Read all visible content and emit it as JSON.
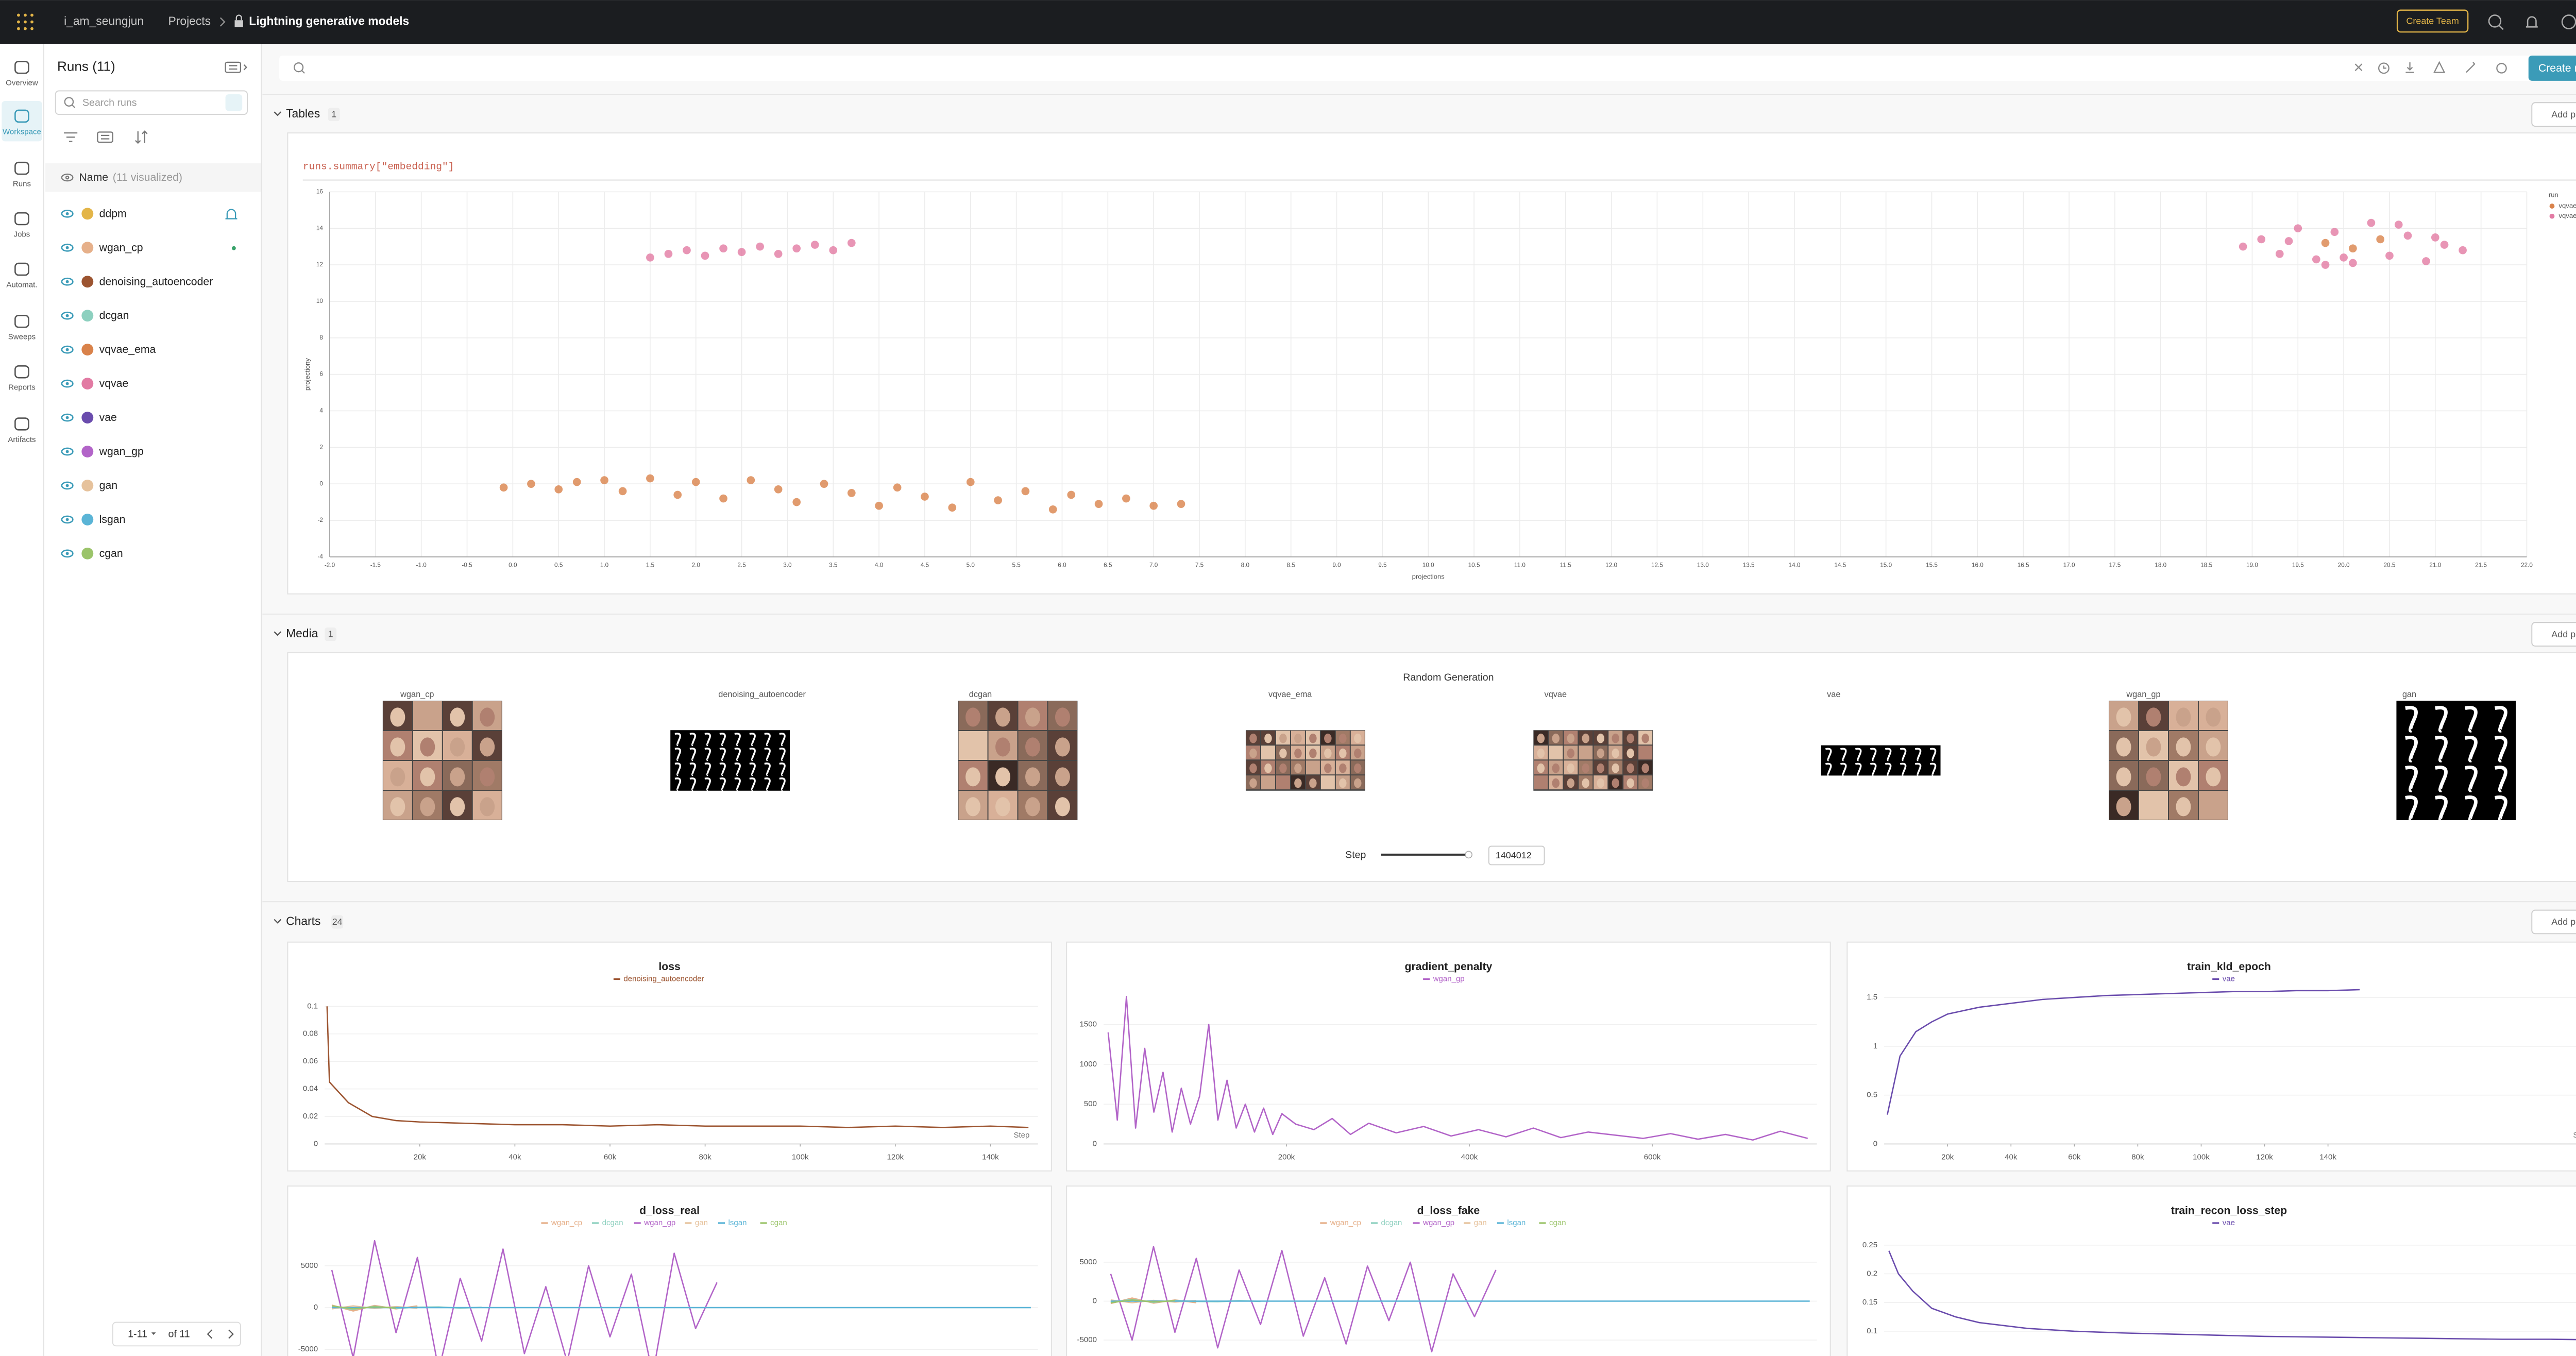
{
  "header": {
    "user": "i_am_seungjun",
    "projects": "Projects",
    "project": "Lightning generative models",
    "create_team": "Create Team"
  },
  "nav": [
    "Overview",
    "Workspace",
    "Runs",
    "Jobs",
    "Automat.",
    "Sweeps",
    "Reports",
    "Artifacts"
  ],
  "runs_panel": {
    "title": "Runs (11)",
    "search_placeholder": "Search runs",
    "name_col": "Name",
    "visualized": "(11 visualized)",
    "runs": [
      {
        "name": "ddpm",
        "color": "#e3b548"
      },
      {
        "name": "wgan_cp",
        "color": "#e6b08a"
      },
      {
        "name": "denoising_autoencoder",
        "color": "#9c5430"
      },
      {
        "name": "dcgan",
        "color": "#8dd0bf"
      },
      {
        "name": "vqvae_ema",
        "color": "#d9824a"
      },
      {
        "name": "vqvae",
        "color": "#e27aa3"
      },
      {
        "name": "vae",
        "color": "#6a4cad"
      },
      {
        "name": "wgan_gp",
        "color": "#b264c8"
      },
      {
        "name": "gan",
        "color": "#e6c29c"
      },
      {
        "name": "lsgan",
        "color": "#5ab4d6"
      },
      {
        "name": "cgan",
        "color": "#9bc46a"
      }
    ],
    "pager": "1-11",
    "pager_total": "of 11"
  },
  "create_report": "Create report",
  "add_panel": "Add panel",
  "sections": [
    {
      "title": "Tables",
      "count": 1
    },
    {
      "title": "Media",
      "count": 1
    },
    {
      "title": "Charts",
      "count": 24
    }
  ],
  "table": {
    "query": "runs.summary[\"embedding\"]"
  },
  "media": {
    "title": "Random Generation",
    "images": [
      "wgan_cp",
      "denoising_autoencoder",
      "dcgan",
      "vqvae_ema",
      "vqvae",
      "vae",
      "wgan_gp",
      "gan"
    ],
    "step_label": "Step",
    "step": 1404012
  },
  "chart_data": [
    {
      "type": "scatter",
      "xlabel": "projections",
      "ylabel": "projectiony",
      "legend_title": "run",
      "legend": "right",
      "grid": true,
      "xlim": [
        -2,
        22
      ],
      "xticks": [
        {
          "value": -2,
          "label": "-2.0"
        },
        -1.5,
        {
          "value": -1,
          "label": "-1.0"
        },
        -0.5,
        {
          "value": 0,
          "label": "0.0"
        },
        0.5,
        {
          "value": 1,
          "label": "1.0"
        },
        1.5,
        {
          "value": 2,
          "label": "2.0"
        },
        2.5,
        {
          "value": 3,
          "label": "3.0"
        },
        3.5,
        {
          "value": 4,
          "label": "4.0"
        },
        4.5,
        {
          "value": 5,
          "label": "5.0"
        },
        5.5,
        {
          "value": 6,
          "label": "6.0"
        },
        6.5,
        {
          "value": 7,
          "label": "7.0"
        },
        7.5,
        {
          "value": 8,
          "label": "8.0"
        },
        8.5,
        {
          "value": 9,
          "label": "9.0"
        },
        9.5,
        {
          "value": 10,
          "label": "10.0"
        },
        10.5,
        {
          "value": 11,
          "label": "11.0"
        },
        11.5,
        {
          "value": 12,
          "label": "12.0"
        },
        12.5,
        {
          "value": 13,
          "label": "13.0"
        },
        13.5,
        {
          "value": 14,
          "label": "14.0"
        },
        14.5,
        {
          "value": 15,
          "label": "15.0"
        },
        15.5,
        {
          "value": 16,
          "label": "16.0"
        },
        16.5,
        {
          "value": 17,
          "label": "17.0"
        },
        17.5,
        {
          "value": 18,
          "label": "18.0"
        },
        18.5,
        {
          "value": 19,
          "label": "19.0"
        },
        19.5,
        {
          "value": 20,
          "label": "20.0"
        },
        20.5,
        {
          "value": 21,
          "label": "21.0"
        },
        21.5,
        {
          "value": 22,
          "label": "22.0"
        }
      ],
      "ylim": [
        -4,
        16
      ],
      "yticks": [
        -4,
        -2,
        0,
        2,
        4,
        6,
        8,
        10,
        12,
        14,
        16
      ],
      "series": [
        {
          "name": "vqvae_ema",
          "color": "#d9824a",
          "x": [
            -0.1,
            0.2,
            0.5,
            0.7,
            1.0,
            1.2,
            1.5,
            1.8,
            2.0,
            2.3,
            2.6,
            2.9,
            3.1,
            3.4,
            3.7,
            4.0,
            4.2,
            4.5,
            4.8,
            5.0,
            5.3,
            5.6,
            5.9,
            6.1,
            6.4,
            6.7,
            7.0,
            7.3,
            19.8,
            20.1,
            20.4
          ],
          "values": [
            -0.2,
            0,
            -0.3,
            0.1,
            0.2,
            -0.4,
            0.3,
            -0.6,
            0.1,
            -0.8,
            0.2,
            -0.3,
            -1.0,
            0,
            -0.5,
            -1.2,
            -0.2,
            -0.7,
            -1.3,
            0.1,
            -0.9,
            -0.4,
            -1.4,
            -0.6,
            -1.1,
            -0.8,
            -1.2,
            -1.1,
            13.2,
            12.9,
            13.4
          ]
        },
        {
          "name": "vqvae",
          "color": "#e27aa3",
          "x": [
            1.5,
            1.7,
            1.9,
            2.1,
            2.3,
            2.5,
            2.7,
            2.9,
            3.1,
            3.3,
            3.5,
            3.7,
            18.9,
            19.1,
            19.3,
            19.5,
            19.7,
            19.9,
            20.1,
            20.3,
            20.5,
            20.7,
            20.9,
            21.1,
            21.3,
            19.4,
            20.0,
            20.6,
            21.0,
            19.8
          ],
          "values": [
            12.4,
            12.6,
            12.8,
            12.5,
            12.9,
            12.7,
            13.0,
            12.6,
            12.9,
            13.1,
            12.8,
            13.2,
            13.0,
            13.4,
            12.6,
            14.0,
            12.3,
            13.8,
            12.1,
            14.3,
            12.5,
            13.6,
            12.2,
            13.1,
            12.8,
            13.3,
            12.4,
            14.2,
            13.5,
            12.0
          ]
        }
      ]
    },
    {
      "type": "line",
      "title": "loss",
      "xlabel": "Step",
      "grid": true,
      "xlim": [
        0,
        150000
      ],
      "xticks": [
        {
          "value": 20000,
          "label": "20k"
        },
        {
          "value": 40000,
          "label": "40k"
        },
        {
          "value": 60000,
          "label": "60k"
        },
        {
          "value": 80000,
          "label": "80k"
        },
        {
          "value": 100000,
          "label": "100k"
        },
        {
          "value": 120000,
          "label": "120k"
        },
        {
          "value": 140000,
          "label": "140k"
        }
      ],
      "ylim": [
        0,
        0.11
      ],
      "yticks": [
        0,
        0.02,
        0.04,
        0.06,
        0.08,
        0.1
      ],
      "x": [
        500,
        1000,
        5000,
        10000,
        15000,
        20000,
        30000,
        40000,
        50000,
        60000,
        70000,
        80000,
        90000,
        100000,
        110000,
        120000,
        130000,
        140000,
        148000
      ],
      "series": [
        {
          "name": "denoising_autoencoder",
          "color": "#9c5430",
          "values": [
            0.1,
            0.045,
            0.03,
            0.02,
            0.017,
            0.016,
            0.015,
            0.014,
            0.014,
            0.013,
            0.014,
            0.013,
            0.013,
            0.013,
            0.012,
            0.013,
            0.012,
            0.013,
            0.012
          ]
        }
      ]
    },
    {
      "type": "line",
      "title": "gradient_penalty",
      "grid": true,
      "xlim": [
        0,
        780000
      ],
      "xticks": [
        {
          "value": 200000,
          "label": "200k"
        },
        {
          "value": 400000,
          "label": "400k"
        },
        {
          "value": 600000,
          "label": "600k"
        }
      ],
      "ylim": [
        0,
        1900
      ],
      "yticks": [
        0,
        500,
        1000,
        1500
      ],
      "x": [
        5000,
        15000,
        25000,
        35000,
        45000,
        55000,
        65000,
        75000,
        85000,
        95000,
        105000,
        115000,
        125000,
        135000,
        145000,
        155000,
        165000,
        175000,
        185000,
        195000,
        210000,
        230000,
        250000,
        270000,
        290000,
        320000,
        350000,
        380000,
        410000,
        440000,
        470000,
        500000,
        530000,
        560000,
        590000,
        620000,
        650000,
        680000,
        710000,
        740000,
        770000
      ],
      "series": [
        {
          "name": "wgan_gp",
          "color": "#b264c8",
          "values": [
            1400,
            300,
            1850,
            200,
            1200,
            400,
            900,
            150,
            700,
            250,
            600,
            1500,
            300,
            800,
            200,
            500,
            150,
            450,
            120,
            380,
            250,
            180,
            320,
            120,
            260,
            140,
            220,
            100,
            180,
            90,
            200,
            80,
            150,
            110,
            70,
            130,
            60,
            120,
            50,
            160,
            70
          ]
        }
      ]
    },
    {
      "type": "line",
      "title": "train_kld_epoch",
      "xlabel": "Step",
      "grid": true,
      "xlim": [
        0,
        225000
      ],
      "xticks": [
        {
          "value": 20000,
          "label": "20k"
        },
        {
          "value": 40000,
          "label": "40k"
        },
        {
          "value": 60000,
          "label": "60k"
        },
        {
          "value": 80000,
          "label": "80k"
        },
        {
          "value": 100000,
          "label": "100k"
        },
        {
          "value": 120000,
          "label": "120k"
        },
        {
          "value": 140000,
          "label": "140k"
        }
      ],
      "ylim": [
        0,
        1.55
      ],
      "yticks": [
        0,
        0.5,
        1,
        1.5
      ],
      "x": [
        1000,
        5000,
        10000,
        15000,
        20000,
        30000,
        40000,
        50000,
        60000,
        70000,
        80000,
        90000,
        100000,
        110000,
        120000,
        130000,
        140000,
        150000
      ],
      "series": [
        {
          "name": "vae",
          "color": "#6a4cad",
          "values": [
            0.3,
            0.9,
            1.15,
            1.25,
            1.33,
            1.4,
            1.44,
            1.48,
            1.5,
            1.52,
            1.53,
            1.54,
            1.55,
            1.56,
            1.56,
            1.57,
            1.57,
            1.58
          ]
        }
      ]
    },
    {
      "type": "line",
      "title": "d_loss_real",
      "grid": true,
      "xlim": [
        0,
        100000
      ],
      "ylim": [
        -9000,
        8500
      ],
      "yticks": [
        -5000,
        0,
        5000
      ],
      "x": [
        1000,
        4000,
        7000,
        10000,
        13000,
        16000,
        19000,
        22000,
        25000,
        28000,
        31000,
        34000,
        37000,
        40000,
        43000,
        46000,
        49000,
        52000,
        55000,
        99000
      ],
      "series": [
        {
          "name": "wgan_cp",
          "color": "#e6b08a",
          "values": [
            300,
            -400,
            250,
            -150,
            200,
            null,
            null,
            null,
            null,
            null,
            null,
            null,
            null,
            null,
            null,
            null,
            null,
            null,
            null,
            null
          ]
        },
        {
          "name": "dcgan",
          "color": "#8dd0bf",
          "values": [
            100,
            -200,
            150,
            -100,
            50,
            80,
            -60,
            40,
            null,
            null,
            null,
            null,
            null,
            null,
            null,
            null,
            null,
            null,
            null,
            null
          ]
        },
        {
          "name": "wgan_gp",
          "color": "#b264c8",
          "values": [
            4500,
            -6000,
            8000,
            -3000,
            6000,
            -7500,
            3500,
            -4000,
            7000,
            -5500,
            2500,
            -6500,
            5000,
            -3500,
            4000,
            -8000,
            6500,
            -2500,
            3000,
            null
          ]
        },
        {
          "name": "gan",
          "color": "#e6c29c",
          "values": [
            -150,
            200,
            -100,
            120,
            -80,
            null,
            null,
            null,
            null,
            null,
            null,
            null,
            null,
            null,
            null,
            null,
            null,
            null,
            null,
            null
          ]
        },
        {
          "name": "lsgan",
          "color": "#5ab4d6",
          "values": [
            0,
            0,
            0,
            0,
            0,
            0,
            0,
            0,
            0,
            0,
            0,
            0,
            0,
            0,
            0,
            0,
            0,
            0,
            0,
            0
          ]
        },
        {
          "name": "cgan",
          "color": "#9bc46a",
          "values": [
            200,
            -150,
            100,
            -50,
            null,
            null,
            null,
            null,
            null,
            null,
            null,
            null,
            null,
            null,
            null,
            null,
            null,
            null,
            null,
            null
          ]
        }
      ]
    },
    {
      "type": "line",
      "title": "d_loss_fake",
      "grid": true,
      "xlim": [
        0,
        100000
      ],
      "ylim": [
        -10500,
        8300
      ],
      "yticks": [
        -5000,
        0,
        5000
      ],
      "x": [
        1000,
        4000,
        7000,
        10000,
        13000,
        16000,
        19000,
        22000,
        25000,
        28000,
        31000,
        34000,
        37000,
        40000,
        43000,
        46000,
        49000,
        52000,
        55000,
        99000
      ],
      "series": [
        {
          "name": "wgan_cp",
          "color": "#e6b08a",
          "values": [
            -300,
            400,
            -250,
            150,
            -200,
            null,
            null,
            null,
            null,
            null,
            null,
            null,
            null,
            null,
            null,
            null,
            null,
            null,
            null,
            null
          ]
        },
        {
          "name": "dcgan",
          "color": "#8dd0bf",
          "values": [
            -100,
            200,
            -150,
            100,
            -50,
            -80,
            60,
            -40,
            null,
            null,
            null,
            null,
            null,
            null,
            null,
            null,
            null,
            null,
            null,
            null
          ]
        },
        {
          "name": "wgan_gp",
          "color": "#b264c8",
          "values": [
            3500,
            -5000,
            7000,
            -4000,
            5500,
            -6000,
            4000,
            -3000,
            6500,
            -4500,
            3000,
            -5500,
            4500,
            -2500,
            5000,
            -6500,
            3500,
            -2000,
            4000,
            null
          ]
        },
        {
          "name": "gan",
          "color": "#e6c29c",
          "values": [
            150,
            -200,
            100,
            -120,
            80,
            null,
            null,
            null,
            null,
            null,
            null,
            null,
            null,
            null,
            null,
            null,
            null,
            null,
            null,
            null
          ]
        },
        {
          "name": "lsgan",
          "color": "#5ab4d6",
          "values": [
            0,
            0,
            0,
            0,
            0,
            0,
            0,
            0,
            0,
            0,
            0,
            0,
            0,
            0,
            0,
            0,
            0,
            0,
            0,
            0
          ]
        },
        {
          "name": "cgan",
          "color": "#9bc46a",
          "values": [
            -200,
            150,
            -100,
            50,
            null,
            null,
            null,
            null,
            null,
            null,
            null,
            null,
            null,
            null,
            null,
            null,
            null,
            null,
            null,
            null
          ]
        }
      ]
    },
    {
      "type": "line",
      "title": "train_recon_loss_step",
      "grid": true,
      "xlim": [
        0,
        150000
      ],
      "ylim": [
        0.01,
        0.265
      ],
      "yticks": [
        0.1,
        0.15,
        0.2,
        0.25
      ],
      "x": [
        1000,
        3000,
        6000,
        10000,
        15000,
        20000,
        30000,
        40000,
        50000,
        60000,
        70000,
        80000,
        90000,
        100000,
        110000,
        120000,
        130000,
        140000,
        150000
      ],
      "series": [
        {
          "name": "vae",
          "color": "#6a4cad",
          "values": [
            0.24,
            0.2,
            0.17,
            0.14,
            0.125,
            0.115,
            0.105,
            0.1,
            0.097,
            0.095,
            0.093,
            0.091,
            0.09,
            0.089,
            0.088,
            0.087,
            0.086,
            0.086,
            0.085
          ]
        }
      ]
    }
  ]
}
